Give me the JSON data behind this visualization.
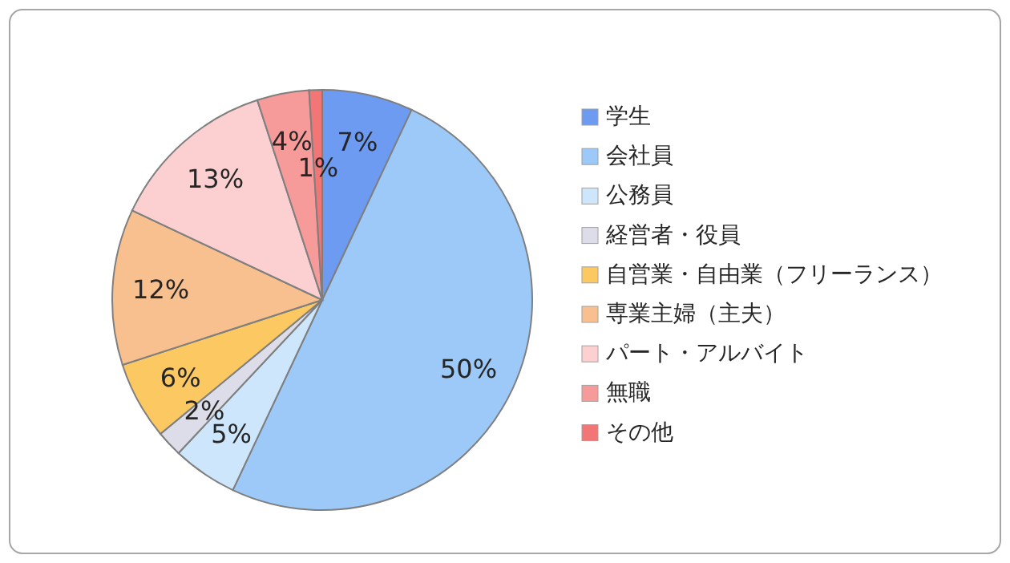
{
  "chart_data": {
    "type": "pie",
    "legend": "right",
    "categories": [
      "学生",
      "会社員",
      "公務員",
      "経営者・役員",
      "自営業・自由業（フリーランス）",
      "専業主婦（主夫）",
      "パート・アルバイト",
      "無職",
      "その他"
    ],
    "values": [
      7,
      50,
      5,
      2,
      6,
      12,
      13,
      4,
      1
    ],
    "colors": [
      "#6d9bf2",
      "#9cc9f7",
      "#cde6fb",
      "#dcdde8",
      "#fcc862",
      "#f8bf8f",
      "#fcd0d0",
      "#f79a9a",
      "#f27676"
    ],
    "value_labels": [
      "7%",
      "50%",
      "5%",
      "2%",
      "6%",
      "12%",
      "13%",
      "4%",
      "1%"
    ]
  }
}
